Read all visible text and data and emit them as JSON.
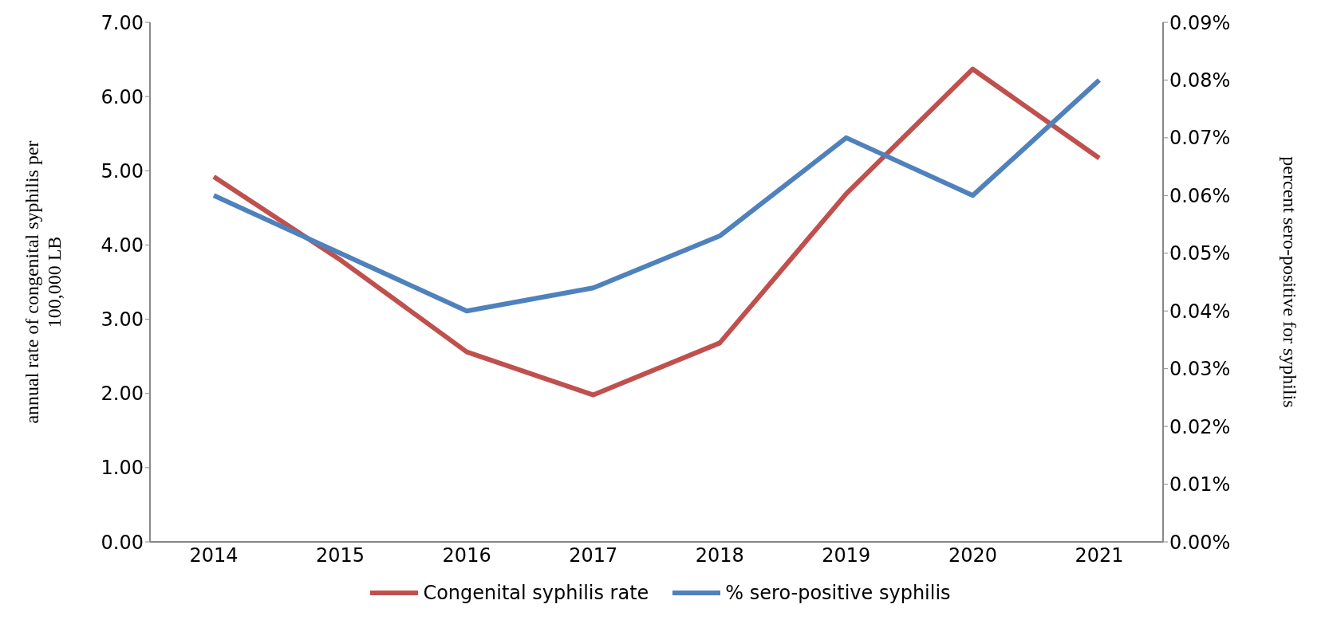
{
  "chart_data": {
    "type": "line",
    "categories": [
      "2014",
      "2015",
      "2016",
      "2017",
      "2018",
      "2019",
      "2020",
      "2021"
    ],
    "ylabel": "annual rate of congenital syphilis per 100,000 LB",
    "y2label": "percent sero-positive for syphilis",
    "ylim": [
      0,
      7
    ],
    "yticks": [
      {
        "value": 0,
        "label": "0.00"
      },
      {
        "value": 1,
        "label": "1.00"
      },
      {
        "value": 2,
        "label": "2.00"
      },
      {
        "value": 3,
        "label": "3.00"
      },
      {
        "value": 4,
        "label": "4.00"
      },
      {
        "value": 5,
        "label": "5.00"
      },
      {
        "value": 6,
        "label": "6.00"
      },
      {
        "value": 7,
        "label": "7.00"
      }
    ],
    "y2lim": [
      0,
      0.09
    ],
    "y2ticks": [
      {
        "value": 0,
        "label": "0.00%"
      },
      {
        "value": 0.01,
        "label": "0.01%"
      },
      {
        "value": 0.02,
        "label": "0.02%"
      },
      {
        "value": 0.03,
        "label": "0.03%"
      },
      {
        "value": 0.04,
        "label": "0.04%"
      },
      {
        "value": 0.05,
        "label": "0.05%"
      },
      {
        "value": 0.06,
        "label": "0.06%"
      },
      {
        "value": 0.07,
        "label": "0.07%"
      },
      {
        "value": 0.08,
        "label": "0.08%"
      },
      {
        "value": 0.09,
        "label": "0.09%"
      }
    ],
    "series": [
      {
        "name": "Congenital syphilis rate",
        "color": "#c0504d",
        "values": [
          4.92,
          3.8,
          2.56,
          1.98,
          2.68,
          4.69,
          6.37,
          5.17
        ]
      },
      {
        "name": "% sero-positive syphilis",
        "color": "#4f81bd",
        "axis": "y2",
        "values": [
          0.06,
          0.05,
          0.04,
          0.044,
          0.053,
          0.07,
          0.06,
          0.08
        ]
      }
    ],
    "legend": "bottom",
    "grid": false,
    "marker": "none",
    "line_style": "solid"
  }
}
